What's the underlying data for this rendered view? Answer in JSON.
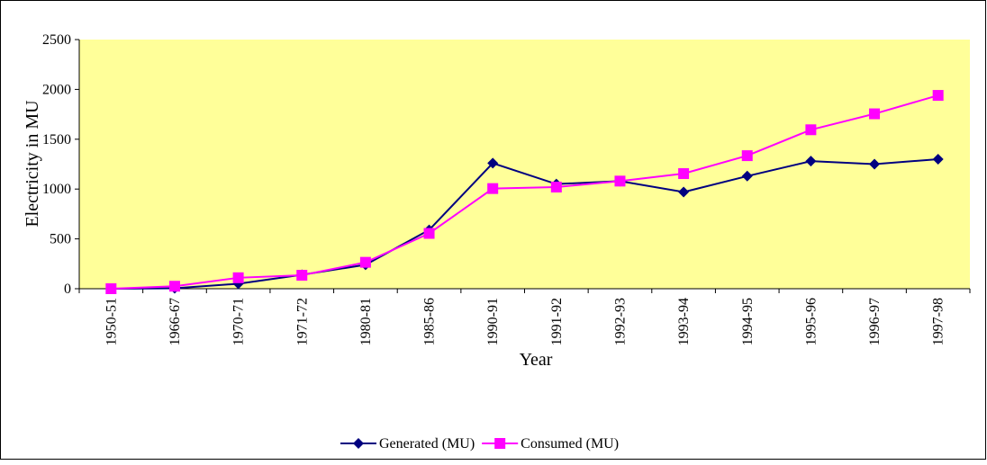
{
  "chart_data": {
    "type": "line",
    "x_label": "Year",
    "y_label": "Electricity in MU",
    "categories": [
      "1950-51",
      "1966-67",
      "1970-71",
      "1971-72",
      "1980-81",
      "1985-86",
      "1990-91",
      "1991-92",
      "1992-93",
      "1993-94",
      "1994-95",
      "1995-96",
      "1996-97",
      "1997-98"
    ],
    "series": [
      {
        "name": "Generated (MU)",
        "color": "#000080",
        "marker": "diamond",
        "values": [
          0,
          5,
          50,
          140,
          240,
          590,
          1260,
          1050,
          1080,
          970,
          1130,
          1280,
          1250,
          1300
        ]
      },
      {
        "name": "Consumed (MU)",
        "color": "#ff00ff",
        "marker": "square",
        "values": [
          0,
          25,
          110,
          135,
          265,
          555,
          1005,
          1020,
          1080,
          1155,
          1335,
          1595,
          1755,
          1940
        ]
      }
    ],
    "ylim": [
      0,
      2500
    ],
    "yticks": [
      0,
      500,
      1000,
      1500,
      2000,
      2500
    ],
    "plot_background": "#ffff99",
    "legend": "bottom"
  }
}
